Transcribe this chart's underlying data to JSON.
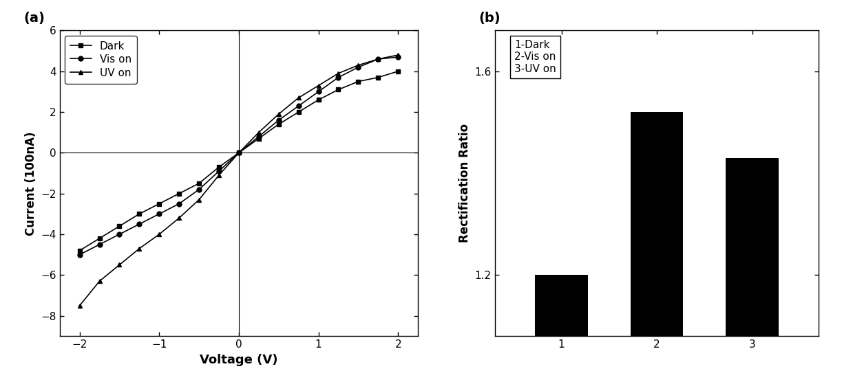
{
  "panel_a_label": "(a)",
  "panel_b_label": "(b)",
  "xlabel_a": "Voltage (V)",
  "ylabel_a": "Current (100nA)",
  "ylabel_b": "Rectification Ratio",
  "xlim_a": [
    -2.25,
    2.25
  ],
  "ylim_a": [
    -9,
    6
  ],
  "yticks_a": [
    -8,
    -6,
    -4,
    -2,
    0,
    2,
    4,
    6
  ],
  "xticks_a": [
    -2,
    -1,
    0,
    1,
    2
  ],
  "legend_labels_a": [
    "Dark",
    "Vis on",
    "UV on"
  ],
  "bar_categories": [
    1,
    2,
    3
  ],
  "bar_values": [
    1.2,
    1.52,
    1.43
  ],
  "bar_bottom": 1.08,
  "bar_color": "#000000",
  "ylim_b": [
    1.08,
    1.68
  ],
  "yticks_b": [
    1.2,
    1.6
  ],
  "legend_text_b": "1-Dark\n2-Vis on\n3-UV on",
  "dark_x": [
    -2.0,
    -1.75,
    -1.5,
    -1.25,
    -1.0,
    -0.75,
    -0.5,
    -0.25,
    0.0,
    0.25,
    0.5,
    0.75,
    1.0,
    1.25,
    1.5,
    1.75,
    2.0
  ],
  "dark_y": [
    -4.8,
    -4.2,
    -3.6,
    -3.0,
    -2.5,
    -2.0,
    -1.5,
    -0.7,
    0.0,
    0.7,
    1.4,
    2.0,
    2.6,
    3.1,
    3.5,
    3.7,
    4.0
  ],
  "vis_x": [
    -2.0,
    -1.75,
    -1.5,
    -1.25,
    -1.0,
    -0.75,
    -0.5,
    -0.25,
    0.0,
    0.25,
    0.5,
    0.75,
    1.0,
    1.25,
    1.5,
    1.75,
    2.0
  ],
  "vis_y": [
    -5.0,
    -4.5,
    -4.0,
    -3.5,
    -3.0,
    -2.5,
    -1.8,
    -0.9,
    0.0,
    0.8,
    1.6,
    2.3,
    3.0,
    3.7,
    4.2,
    4.6,
    4.7
  ],
  "uv_x": [
    -2.0,
    -1.75,
    -1.5,
    -1.25,
    -1.0,
    -0.75,
    -0.5,
    -0.25,
    0.0,
    0.25,
    0.5,
    0.75,
    1.0,
    1.25,
    1.5,
    1.75,
    2.0
  ],
  "uv_y": [
    -7.5,
    -6.3,
    -5.5,
    -4.7,
    -4.0,
    -3.2,
    -2.3,
    -1.1,
    0.0,
    1.0,
    1.9,
    2.7,
    3.3,
    3.9,
    4.3,
    4.6,
    4.8
  ],
  "line_color": "#000000",
  "marker_dark": "s",
  "marker_vis": "o",
  "marker_uv": "^",
  "markersize": 5,
  "linewidth": 1.2
}
